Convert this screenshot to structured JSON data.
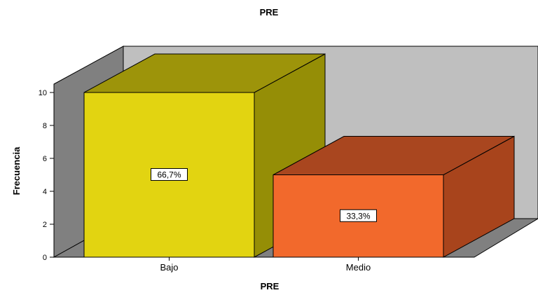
{
  "chart_data": {
    "type": "bar",
    "title": "PRE",
    "xlabel": "PRE",
    "ylabel": "Frecuencia",
    "categories": [
      "Bajo",
      "Medio"
    ],
    "values": [
      10,
      5
    ],
    "data_labels": [
      "66,7%",
      "33,3%"
    ],
    "ylim": [
      0,
      10
    ],
    "yticks": [
      "0",
      "2",
      "4",
      "6",
      "8",
      "10"
    ],
    "bar_colors": {
      "front": [
        "#e2d411",
        "#f2692c"
      ],
      "side": [
        "#958e06",
        "#a8441c"
      ],
      "top": [
        "#9d940a",
        "#a9461f"
      ]
    },
    "wall_color": "#bfbfbf",
    "side_wall_color": "#808080",
    "floor_color": "#808080",
    "grid": false,
    "style": "3d"
  }
}
